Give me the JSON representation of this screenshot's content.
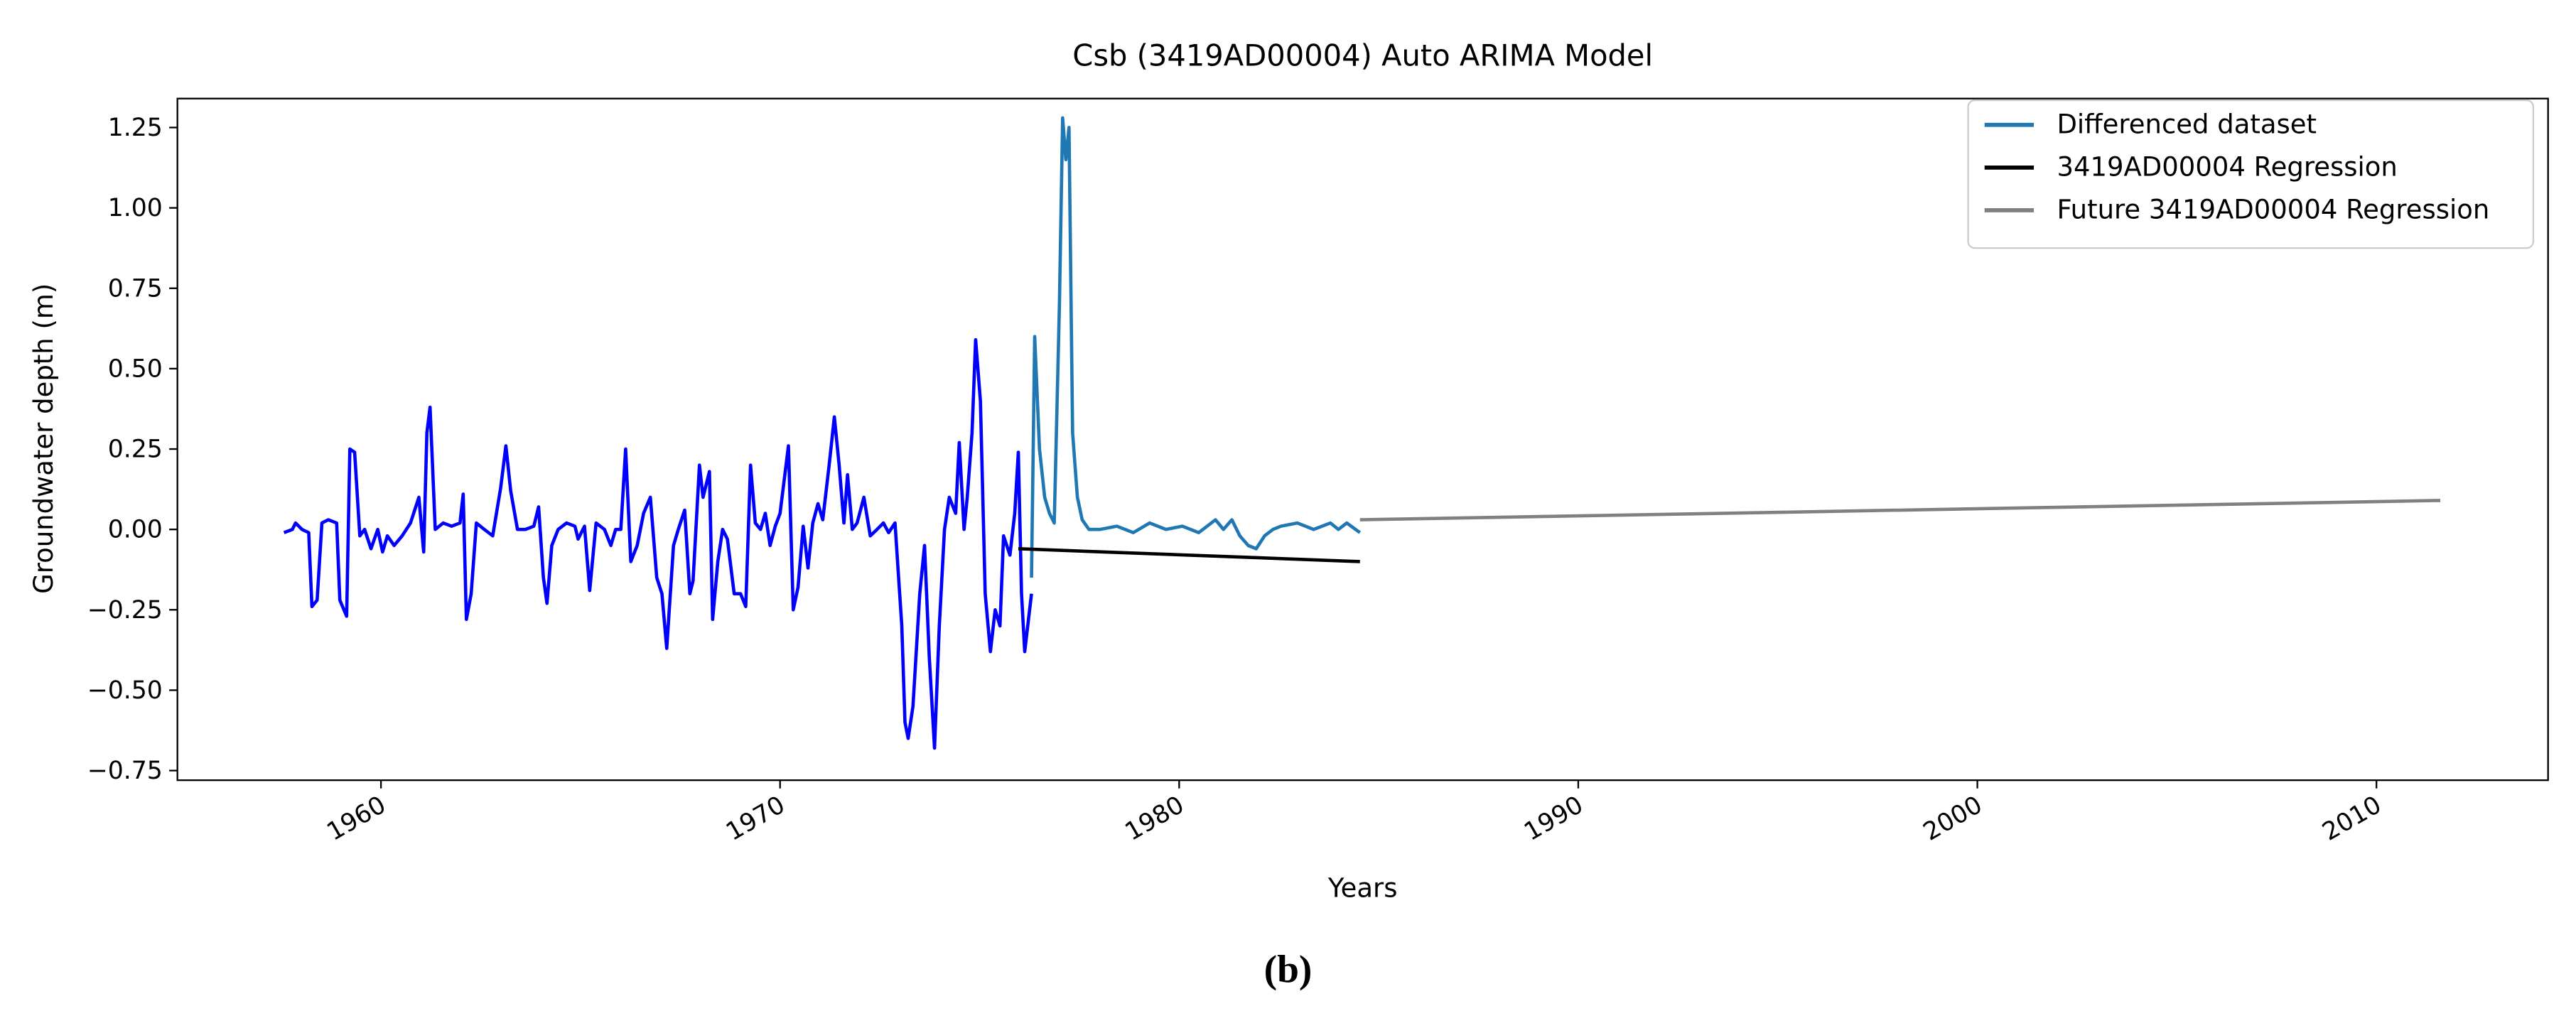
{
  "chart_data": {
    "type": "line",
    "title": "Csb (3419AD00004) Auto ARIMA Model",
    "x_label": "Years",
    "y_label": "Groundwater depth (m)",
    "caption": "(b)",
    "xlim": [
      1954.9,
      2014.3
    ],
    "ylim": [
      -0.78,
      1.34
    ],
    "xticks": [
      1960,
      1970,
      1980,
      1990,
      2000,
      2010
    ],
    "yticks": [
      {
        "value": -0.75,
        "label": "−0.75"
      },
      {
        "value": -0.5,
        "label": "−0.50"
      },
      {
        "value": -0.25,
        "label": "−0.25"
      },
      {
        "value": 0,
        "label": "0.00"
      },
      {
        "value": 0.25,
        "label": "0.25"
      },
      {
        "value": 0.5,
        "label": "0.50"
      },
      {
        "value": 0.75,
        "label": "0.75"
      },
      {
        "value": 1,
        "label": "1.00"
      },
      {
        "value": 1.25,
        "label": "1.25"
      }
    ],
    "legend_position": "upper right",
    "series": [
      {
        "color": "#0000ff",
        "x": [
          1957.57,
          1957.78,
          1957.86,
          1958.02,
          1958.19,
          1958.27,
          1958.4,
          1958.52,
          1958.68,
          1958.89,
          1958.97,
          1959.14,
          1959.22,
          1959.34,
          1959.47,
          1959.59,
          1959.75,
          1959.92,
          1960.04,
          1960.16,
          1960.33,
          1960.53,
          1960.74,
          1960.95,
          1961.07,
          1961.15,
          1961.23,
          1961.36,
          1961.56,
          1961.77,
          1961.98,
          1962.06,
          1962.14,
          1962.26,
          1962.39,
          1962.59,
          1962.8,
          1963.0,
          1963.13,
          1963.25,
          1963.42,
          1963.62,
          1963.83,
          1963.95,
          1964.07,
          1964.16,
          1964.28,
          1964.44,
          1964.65,
          1964.86,
          1964.94,
          1965.1,
          1965.23,
          1965.39,
          1965.6,
          1965.76,
          1965.88,
          1966.01,
          1966.13,
          1966.26,
          1966.42,
          1966.58,
          1966.75,
          1966.91,
          1967.04,
          1967.16,
          1967.33,
          1967.45,
          1967.61,
          1967.74,
          1967.82,
          1967.98,
          1968.07,
          1968.23,
          1968.31,
          1968.44,
          1968.56,
          1968.68,
          1968.85,
          1969.01,
          1969.14,
          1969.26,
          1969.38,
          1969.51,
          1969.63,
          1969.75,
          1969.88,
          1970.0,
          1970.21,
          1970.33,
          1970.45,
          1970.58,
          1970.7,
          1970.82,
          1970.95,
          1971.07,
          1971.23,
          1971.36,
          1971.48,
          1971.6,
          1971.69,
          1971.81,
          1971.93,
          1972.1,
          1972.26,
          1972.43,
          1972.59,
          1972.72,
          1972.88,
          1973.05,
          1973.13,
          1973.21,
          1973.33,
          1973.5,
          1973.62,
          1973.74,
          1973.87,
          1973.99,
          1974.12,
          1974.24,
          1974.4,
          1974.49,
          1974.61,
          1974.69,
          1974.81,
          1974.9,
          1975.02,
          1975.14,
          1975.27,
          1975.39,
          1975.51,
          1975.6,
          1975.76,
          1975.88,
          1975.97,
          1976.05,
          1976.13,
          1976.3
        ],
        "values": [
          -0.01,
          0.0,
          0.02,
          0.0,
          -0.01,
          -0.24,
          -0.22,
          0.02,
          0.03,
          0.02,
          -0.22,
          -0.27,
          0.25,
          0.24,
          -0.02,
          0.0,
          -0.06,
          0.0,
          -0.07,
          -0.02,
          -0.05,
          -0.02,
          0.02,
          0.1,
          -0.07,
          0.3,
          0.38,
          0.0,
          0.02,
          0.01,
          0.02,
          0.11,
          -0.28,
          -0.2,
          0.02,
          0.0,
          -0.02,
          0.13,
          0.26,
          0.12,
          0.0,
          0.0,
          0.01,
          0.07,
          -0.15,
          -0.23,
          -0.05,
          0.0,
          0.02,
          0.01,
          -0.03,
          0.01,
          -0.19,
          0.02,
          0.0,
          -0.05,
          0.0,
          0.0,
          0.25,
          -0.1,
          -0.05,
          0.05,
          0.1,
          -0.15,
          -0.2,
          -0.37,
          -0.05,
          0.0,
          0.06,
          -0.2,
          -0.16,
          0.2,
          0.1,
          0.18,
          -0.28,
          -0.1,
          0.0,
          -0.03,
          -0.2,
          -0.2,
          -0.24,
          0.2,
          0.02,
          0.0,
          0.05,
          -0.05,
          0.01,
          0.05,
          0.26,
          -0.25,
          -0.18,
          0.01,
          -0.12,
          0.02,
          0.08,
          0.03,
          0.2,
          0.35,
          0.2,
          0.02,
          0.17,
          0.0,
          0.02,
          0.1,
          -0.02,
          0.0,
          0.02,
          -0.01,
          0.02,
          -0.3,
          -0.6,
          -0.65,
          -0.55,
          -0.2,
          -0.05,
          -0.4,
          -0.68,
          -0.3,
          0.0,
          0.1,
          0.05,
          0.27,
          0.0,
          0.1,
          0.3,
          0.59,
          0.4,
          -0.2,
          -0.38,
          -0.25,
          -0.3,
          -0.02,
          -0.08,
          0.05,
          0.24,
          -0.2,
          -0.38,
          -0.2
        ]
      },
      {
        "name": "Differenced dataset",
        "color": "#1f77b4",
        "x": [
          1976.3,
          1976.38,
          1976.5,
          1976.63,
          1976.75,
          1976.87,
          1977.0,
          1977.08,
          1977.16,
          1977.24,
          1977.33,
          1977.45,
          1977.57,
          1977.74,
          1978.02,
          1978.44,
          1978.85,
          1979.26,
          1979.67,
          1980.08,
          1980.49,
          1980.91,
          1981.11,
          1981.32,
          1981.52,
          1981.73,
          1981.93,
          1982.14,
          1982.35,
          1982.55,
          1982.96,
          1983.37,
          1983.79,
          1983.99,
          1984.2,
          1984.53
        ],
        "values": [
          -0.15,
          0.6,
          0.25,
          0.1,
          0.05,
          0.02,
          0.7,
          1.28,
          1.15,
          1.25,
          0.3,
          0.1,
          0.03,
          0.0,
          0.0,
          0.01,
          -0.01,
          0.02,
          0.0,
          0.01,
          -0.01,
          0.03,
          0.0,
          0.03,
          -0.02,
          -0.05,
          -0.06,
          -0.02,
          0.0,
          0.01,
          0.02,
          0.0,
          0.02,
          0.0,
          0.02,
          -0.01
        ]
      },
      {
        "name": "3419AD00004 Regression",
        "color": "#000000",
        "x": [
          1975.97,
          1984.53
        ],
        "values": [
          -0.06,
          -0.1
        ]
      },
      {
        "name": "Future 3419AD00004 Regression",
        "color": "#808080",
        "x": [
          1984.53,
          2011.6
        ],
        "values": [
          0.03,
          0.09
        ]
      }
    ]
  }
}
